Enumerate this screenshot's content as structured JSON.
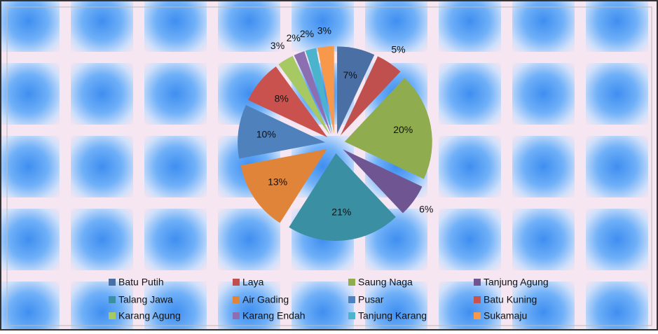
{
  "chart_data": {
    "type": "pie",
    "categories": [
      "Batu Putih",
      "Laya",
      "Saung Naga",
      "Tanjung Agung",
      "Talang Jawa",
      "Air Gading",
      "Pusar",
      "Batu Kuning",
      "Karang Agung",
      "Karang Endah",
      "Tanjung Karang",
      "Sukamaju"
    ],
    "values": [
      7,
      5,
      20,
      6,
      21,
      13,
      10,
      8,
      3,
      2,
      2,
      3
    ],
    "value_labels": [
      "7%",
      "5%",
      "20%",
      "6%",
      "21%",
      "13%",
      "10%",
      "8%",
      "3%",
      "2%",
      "2%",
      "3%"
    ],
    "colors": [
      "#4a6fa5",
      "#c0504d",
      "#8fac4f",
      "#6f5693",
      "#3a8fa3",
      "#e0843a",
      "#4f81bd",
      "#c9524e",
      "#a6c963",
      "#8c6fb0",
      "#4bb3cc",
      "#f7984a"
    ],
    "legend": "bottom"
  }
}
